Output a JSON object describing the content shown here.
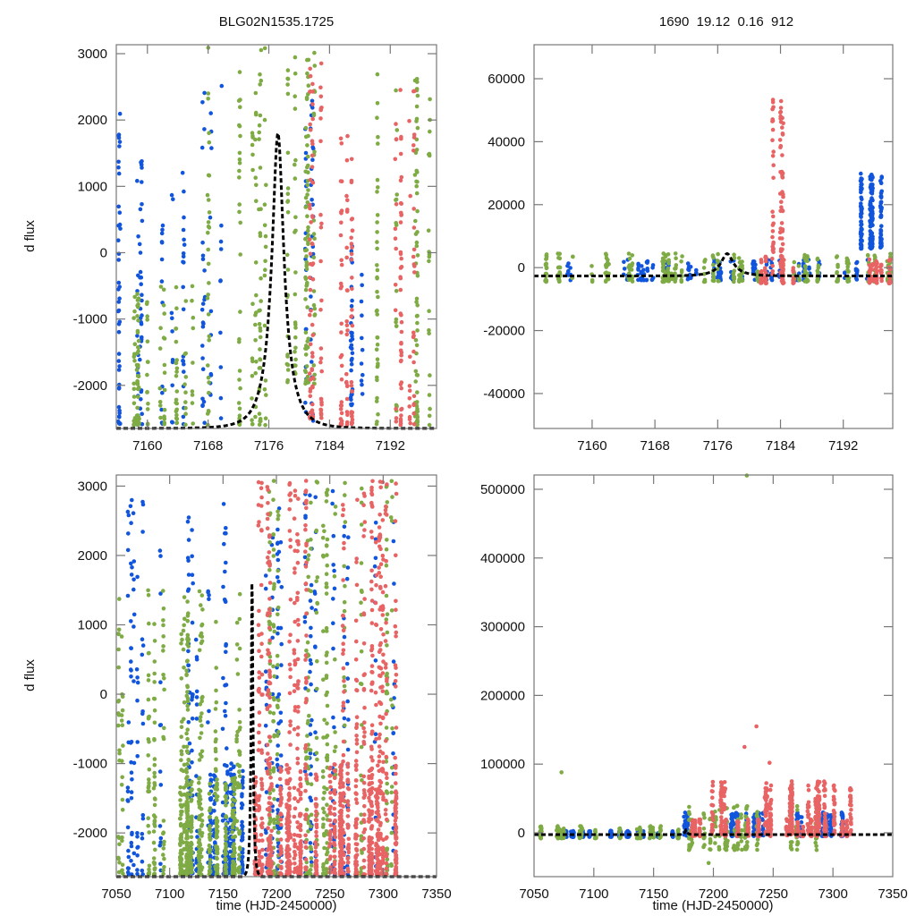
{
  "chart_data": [
    {
      "id": "top-left",
      "type": "scatter",
      "title": "BLG02N1535.1725",
      "xlabel": "",
      "ylabel": "d flux",
      "xlim": [
        7155.9,
        7198.1
      ],
      "ylim": [
        -2650,
        3135
      ],
      "xticks": [
        7160,
        7168,
        7176,
        7184,
        7192
      ],
      "xtick_labels": [
        "7160",
        "7168",
        "7176",
        "7184",
        "7192"
      ],
      "yticks": [
        3000,
        2000,
        1000,
        0,
        -1000,
        -2000
      ],
      "ytick_labels": [
        "3000",
        "2000",
        "1000",
        "0",
        "-1000",
        "-2000"
      ],
      "grid": false,
      "model": {
        "name": "model curve",
        "style": "dashed",
        "color": "#000000",
        "t0": 7177.2,
        "tE": 2.6,
        "peak": 1800,
        "baseline": -2650
      },
      "series": [
        {
          "name": "blue",
          "color": "#1155dd",
          "seed": 11,
          "count": 260,
          "segments": [
            [
              7156,
              7157,
              -2600,
              2350
            ],
            [
              7158.5,
              7160,
              -2600,
              1400
            ],
            [
              7161,
              7165,
              -2600,
              1250
            ],
            [
              7166,
              7170,
              -2600,
              2600
            ],
            [
              7180.5,
              7182,
              -2600,
              2300
            ],
            [
              7186,
              7188.5,
              -2300,
              600
            ]
          ]
        },
        {
          "name": "green",
          "color": "#7fab45",
          "seed": 23,
          "count": 560,
          "segments": [
            [
              7156,
              7167,
              -2600,
              -500
            ],
            [
              7167,
              7176.5,
              -2600,
              3100
            ],
            [
              7176.5,
              7182.5,
              -2000,
              3100
            ],
            [
              7190,
              7198,
              -2600,
              2700
            ]
          ]
        },
        {
          "name": "red",
          "color": "#e86464",
          "seed": 37,
          "count": 260,
          "segments": [
            [
              7181,
              7184,
              -2500,
              3000
            ],
            [
              7185.5,
              7188,
              -2600,
              1900
            ],
            [
              7192,
              7197,
              -2600,
              2500
            ]
          ]
        }
      ]
    },
    {
      "id": "top-right",
      "type": "scatter",
      "title": "1690  19.12  0.16  912",
      "xlabel": "",
      "ylabel": "",
      "xlim": [
        7152.6,
        7198.3
      ],
      "ylim": [
        -51100,
        70800
      ],
      "xticks": [
        7160,
        7168,
        7176,
        7184,
        7192
      ],
      "xtick_labels": [
        "7160",
        "7168",
        "7176",
        "7184",
        "7192"
      ],
      "yticks": [
        60000,
        40000,
        20000,
        0,
        -20000,
        -40000
      ],
      "ytick_labels": [
        "60000",
        "40000",
        "20000",
        "0",
        "-20000",
        "-40000"
      ],
      "grid": false,
      "model": {
        "name": "model curve",
        "style": "dashed",
        "color": "#000000",
        "t0": 7177.2,
        "tE": 2.6,
        "peak": 4450,
        "baseline": -2650
      },
      "series": [
        {
          "name": "blue",
          "color": "#1155dd",
          "seed": 51,
          "count": 420,
          "segments": [
            [
              7153,
              7198,
              -4000,
              2500
            ],
            [
              7192.5,
              7197.5,
              6000,
              30000
            ]
          ]
        },
        {
          "name": "green",
          "color": "#7fab45",
          "seed": 63,
          "count": 380,
          "segments": [
            [
              7153,
              7198,
              -4500,
              4500
            ]
          ]
        },
        {
          "name": "red",
          "color": "#e86464",
          "seed": 77,
          "count": 260,
          "segments": [
            [
              7180,
              7188,
              -5000,
              4000
            ],
            [
              7192,
              7198,
              -5000,
              3000
            ],
            [
              7182.5,
              7184.5,
              -2000,
              55000
            ]
          ]
        }
      ]
    },
    {
      "id": "bottom-left",
      "type": "scatter",
      "title": "",
      "xlabel": "time (HJD-2450000)",
      "ylabel": "d flux",
      "xlim": [
        7050,
        7350
      ],
      "ylim": [
        -2630,
        3160
      ],
      "xticks": [
        7050,
        7100,
        7150,
        7200,
        7250,
        7300,
        7350
      ],
      "xtick_labels": [
        "7050",
        "7100",
        "7150",
        "7200",
        "7250",
        "7300",
        "7350"
      ],
      "yticks": [
        3000,
        2000,
        1000,
        0,
        -1000,
        -2000
      ],
      "ytick_labels": [
        "3000",
        "2000",
        "1000",
        "0",
        "-1000",
        "-2000"
      ],
      "grid": false,
      "model": {
        "name": "model curve",
        "style": "dashed",
        "color": "#000000",
        "t0": 7177.2,
        "tE": 2.6,
        "peak": 1800,
        "baseline": -2650
      },
      "series": [
        {
          "name": "blue",
          "color": "#1155dd",
          "seed": 91,
          "count": 700,
          "segments": [
            [
              7060,
              7175,
              -2600,
              2800
            ],
            [
              7130,
              7175,
              -2600,
              -1000
            ],
            [
              7180,
              7310,
              -2600,
              3100
            ]
          ]
        },
        {
          "name": "green",
          "color": "#7fab45",
          "seed": 103,
          "count": 1100,
          "segments": [
            [
              7052,
              7175,
              -2600,
              1500
            ],
            [
              7110,
              7175,
              -2600,
              -1200
            ],
            [
              7180,
              7310,
              -2600,
              3100
            ]
          ]
        },
        {
          "name": "red",
          "color": "#e86464",
          "seed": 117,
          "count": 1400,
          "segments": [
            [
              7180,
              7312,
              -2600,
              3100
            ],
            [
              7180,
              7312,
              -2600,
              -1000
            ]
          ]
        }
      ]
    },
    {
      "id": "bottom-right",
      "type": "scatter",
      "title": "",
      "xlabel": "time (HJD-2450000)",
      "ylabel": "",
      "xlim": [
        7050,
        7350
      ],
      "ylim": [
        -63800,
        520800
      ],
      "xticks": [
        7050,
        7100,
        7150,
        7200,
        7250,
        7300,
        7350
      ],
      "xtick_labels": [
        "7050",
        "7100",
        "7150",
        "7200",
        "7250",
        "7300",
        "7350"
      ],
      "yticks": [
        500000,
        400000,
        300000,
        200000,
        100000,
        0
      ],
      "ytick_labels": [
        "500000",
        "400000",
        "300000",
        "200000",
        "100000",
        "0"
      ],
      "grid": false,
      "model": {
        "name": "model curve",
        "style": "dashed",
        "color": "#000000",
        "t0": 7177.2,
        "tE": 2.6,
        "peak": 4450,
        "baseline": -2650
      },
      "series": [
        {
          "name": "blue",
          "color": "#1155dd",
          "seed": 131,
          "count": 600,
          "segments": [
            [
              7065,
              7175,
              -6000,
              3000
            ],
            [
              7175,
              7310,
              -5000,
              30000
            ]
          ]
        },
        {
          "name": "green",
          "color": "#7fab45",
          "seed": 149,
          "count": 380,
          "segments": [
            [
              7052,
              7175,
              -8000,
              10000
            ],
            [
              7175,
              7310,
              -25000,
              40000
            ]
          ]
        },
        {
          "name": "red",
          "color": "#e86464",
          "seed": 163,
          "count": 900,
          "segments": [
            [
              7180,
              7315,
              -5000,
              20000
            ],
            [
              7180,
              7315,
              -2000,
              75000
            ]
          ]
        }
      ],
      "outliers": [
        {
          "series": "green",
          "x": 7073,
          "y": 88000
        },
        {
          "series": "green",
          "x": 7228,
          "y": 520000
        },
        {
          "series": "red",
          "x": 7236,
          "y": 155000
        },
        {
          "series": "red",
          "x": 7226,
          "y": 125000
        },
        {
          "series": "red",
          "x": 7247,
          "y": 102000
        },
        {
          "series": "green",
          "x": 7196,
          "y": -44000
        }
      ]
    }
  ]
}
